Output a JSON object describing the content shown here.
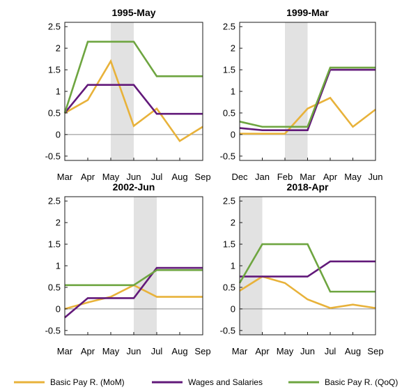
{
  "chart_data": [
    {
      "type": "line",
      "title": "1995-May",
      "categories": [
        "Mar",
        "Apr",
        "May",
        "Jun",
        "Jul",
        "Aug",
        "Sep"
      ],
      "ylim": [
        -0.6,
        2.6
      ],
      "yticks": [
        "2.5",
        "2",
        "1.5",
        "1",
        "0.5",
        "0",
        "-0.5"
      ],
      "yticks_values": [
        2.5,
        2,
        1.5,
        1,
        0.5,
        0,
        -0.5
      ],
      "shade": [
        "May",
        "Jun"
      ],
      "series": [
        {
          "key": "mom",
          "values": [
            0.5,
            0.8,
            1.7,
            0.2,
            0.6,
            -0.15,
            0.18
          ]
        },
        {
          "key": "wages",
          "values": [
            0.5,
            1.15,
            1.15,
            1.15,
            0.48,
            0.48,
            0.48
          ]
        },
        {
          "key": "qoq",
          "values": [
            0.5,
            2.15,
            2.15,
            2.15,
            1.35,
            1.35,
            1.35
          ]
        }
      ]
    },
    {
      "type": "line",
      "title": "1999-Mar",
      "categories": [
        "Dec",
        "Jan",
        "Feb",
        "Mar",
        "Apr",
        "May",
        "Jun"
      ],
      "ylim": [
        -0.6,
        2.6
      ],
      "yticks": [
        "2.5",
        "2",
        "1.5",
        "1",
        "0.5",
        "0",
        "-0.5"
      ],
      "yticks_values": [
        2.5,
        2,
        1.5,
        1,
        0.5,
        0,
        -0.5
      ],
      "shade": [
        "Feb",
        "Mar"
      ],
      "series": [
        {
          "key": "mom",
          "values": [
            0.02,
            0.02,
            0.02,
            0.6,
            0.85,
            0.18,
            0.58
          ]
        },
        {
          "key": "wages",
          "values": [
            0.15,
            0.1,
            0.1,
            0.1,
            1.5,
            1.5,
            1.5
          ]
        },
        {
          "key": "qoq",
          "values": [
            0.3,
            0.18,
            0.18,
            0.18,
            1.55,
            1.55,
            1.55
          ]
        }
      ]
    },
    {
      "type": "line",
      "title": "2002-Jun",
      "categories": [
        "Mar",
        "Apr",
        "May",
        "Jun",
        "Jul",
        "Aug",
        "Sep"
      ],
      "ylim": [
        -0.6,
        2.6
      ],
      "yticks": [
        "2.5",
        "2",
        "1.5",
        "1",
        "0.5",
        "0",
        "-0.5"
      ],
      "yticks_values": [
        2.5,
        2,
        1.5,
        1,
        0.5,
        0,
        -0.5
      ],
      "shade": [
        "Jun",
        "Jul"
      ],
      "series": [
        {
          "key": "mom",
          "values": [
            0.0,
            0.15,
            0.28,
            0.55,
            0.28,
            0.28,
            0.28
          ]
        },
        {
          "key": "wages",
          "values": [
            -0.2,
            0.25,
            0.25,
            0.25,
            0.95,
            0.95,
            0.95
          ]
        },
        {
          "key": "qoq",
          "values": [
            0.55,
            0.55,
            0.55,
            0.55,
            0.9,
            0.9,
            0.9
          ]
        }
      ]
    },
    {
      "type": "line",
      "title": "2018-Apr",
      "categories": [
        "Mar",
        "Apr",
        "May",
        "Jun",
        "Jul",
        "Aug",
        "Sep"
      ],
      "ylim": [
        -0.6,
        2.6
      ],
      "yticks": [
        "2.5",
        "2",
        "1.5",
        "1",
        "0.5",
        "0",
        "-0.5"
      ],
      "yticks_values": [
        2.5,
        2,
        1.5,
        1,
        0.5,
        0,
        -0.5
      ],
      "shade": [
        "Mar",
        "Apr"
      ],
      "series": [
        {
          "key": "mom",
          "values": [
            0.42,
            0.75,
            0.6,
            0.22,
            0.02,
            0.1,
            0.02
          ]
        },
        {
          "key": "wages",
          "values": [
            0.75,
            0.75,
            0.75,
            0.75,
            1.1,
            1.1,
            1.1
          ]
        },
        {
          "key": "qoq",
          "values": [
            0.6,
            1.5,
            1.5,
            1.5,
            0.4,
            0.4,
            0.4
          ]
        }
      ]
    }
  ],
  "legend": [
    {
      "key": "mom",
      "label": "Basic Pay R. (MoM)",
      "color": "#e8b23a"
    },
    {
      "key": "wages",
      "label": "Wages and Salaries",
      "color": "#62197a"
    },
    {
      "key": "qoq",
      "label": "Basic Pay R. (QoQ)",
      "color": "#6ea540"
    }
  ],
  "colors": {
    "shade": "#e2e2e2",
    "zero_line": "#8a8a8a",
    "axis": "#1a1a1a"
  }
}
